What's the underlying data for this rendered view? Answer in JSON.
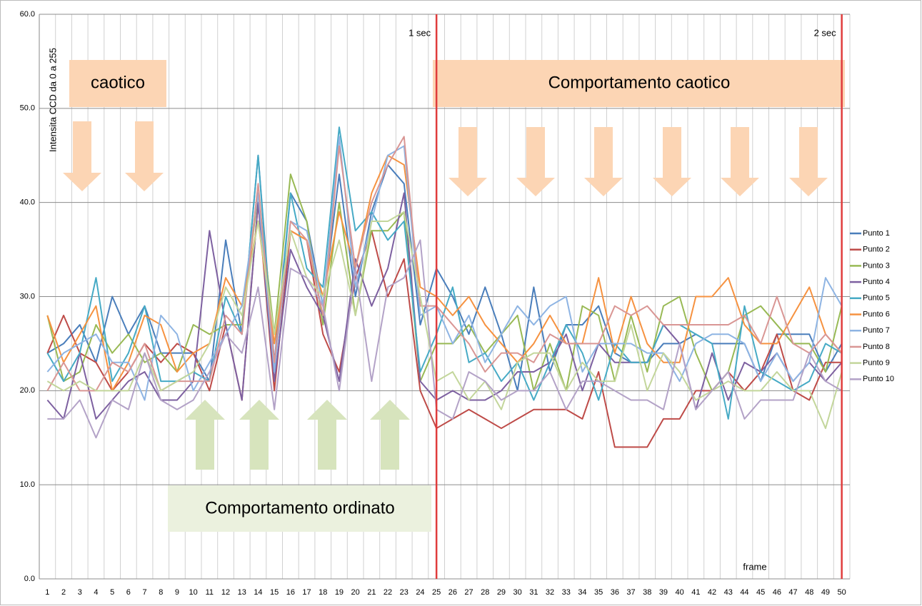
{
  "chart_data": {
    "type": "line",
    "y_label": "Intensita CCD da 0 a 255",
    "x_label": "frame",
    "annotations": [
      "caotico",
      "Comportamento caotico",
      "Comportamento ordinato"
    ],
    "markers": [
      {
        "x": 25,
        "label": "1 sec",
        "color": "#e03c3c"
      },
      {
        "x": 50,
        "label": "2 sec",
        "color": "#e03c3c"
      }
    ],
    "categories": [
      1,
      2,
      3,
      4,
      5,
      6,
      7,
      8,
      9,
      10,
      11,
      12,
      13,
      14,
      15,
      16,
      17,
      18,
      19,
      20,
      21,
      22,
      23,
      24,
      25,
      26,
      27,
      28,
      29,
      30,
      31,
      32,
      33,
      34,
      35,
      36,
      37,
      38,
      39,
      40,
      41,
      42,
      43,
      44,
      45,
      46,
      47,
      48,
      49,
      50
    ],
    "ylim": [
      0,
      60
    ],
    "yticks": [
      {
        "value": 0,
        "label": "0.0"
      },
      {
        "value": 10,
        "label": "10.0"
      },
      {
        "value": 20,
        "label": "20.0"
      },
      {
        "value": 30,
        "label": "30.0"
      },
      {
        "value": 40,
        "label": "40.0"
      },
      {
        "value": 50,
        "label": "50.0"
      },
      {
        "value": 60,
        "label": "60.0"
      }
    ],
    "grid": true,
    "legend": "right",
    "series": [
      {
        "name": "Punto 1",
        "color": "#4a7ebb",
        "values": [
          24,
          25,
          27,
          23,
          30,
          26,
          29,
          24,
          24,
          24,
          21,
          36,
          26,
          45,
          23,
          41,
          38,
          29,
          43,
          30,
          39,
          44,
          42,
          27,
          33,
          30,
          26,
          31,
          26,
          20,
          31,
          22,
          27,
          27,
          29,
          24,
          23,
          23,
          25,
          25,
          26,
          25,
          25,
          25,
          21,
          26,
          26,
          26,
          22,
          25
        ]
      },
      {
        "name": "Punto 2",
        "color": "#be4b48",
        "values": [
          24,
          28,
          24,
          23,
          20,
          22,
          25,
          23,
          25,
          24,
          20,
          27,
          19,
          40,
          20,
          37,
          36,
          26,
          22,
          32,
          37,
          30,
          34,
          20,
          16,
          17,
          18,
          17,
          16,
          17,
          18,
          18,
          18,
          17,
          22,
          14,
          14,
          14,
          17,
          17,
          20,
          20,
          22,
          20,
          22,
          26,
          20,
          19,
          23,
          23
        ]
      },
      {
        "name": "Punto 3",
        "color": "#98b954",
        "values": [
          28,
          21,
          22,
          27,
          24,
          26,
          23,
          24,
          22,
          27,
          26,
          27,
          27,
          41,
          26,
          43,
          38,
          27,
          40,
          28,
          37,
          37,
          39,
          21,
          25,
          25,
          27,
          24,
          26,
          28,
          20,
          25,
          20,
          29,
          28,
          21,
          28,
          22,
          29,
          30,
          24,
          20,
          22,
          28,
          29,
          27,
          25,
          25,
          22,
          29
        ]
      },
      {
        "name": "Punto 4",
        "color": "#7d60a0",
        "values": [
          19,
          17,
          24,
          17,
          19,
          21,
          22,
          19,
          19,
          21,
          37,
          27,
          19,
          40,
          21,
          35,
          31,
          28,
          21,
          34,
          29,
          33,
          41,
          21,
          19,
          20,
          19,
          19,
          20,
          22,
          22,
          23,
          26,
          20,
          25,
          23,
          23,
          23,
          27,
          25,
          18,
          24,
          19,
          23,
          22,
          24,
          21,
          23,
          21,
          23
        ]
      },
      {
        "name": "Punto 5",
        "color": "#46aac5",
        "values": [
          24,
          21,
          24,
          32,
          21,
          24,
          29,
          21,
          21,
          22,
          21,
          30,
          26,
          45,
          22,
          41,
          33,
          31,
          48,
          37,
          39,
          36,
          38,
          22,
          26,
          31,
          23,
          24,
          21,
          23,
          19,
          23,
          27,
          24,
          19,
          25,
          23,
          23,
          27,
          27,
          26,
          25,
          17,
          29,
          22,
          21,
          20,
          21,
          25,
          24
        ]
      },
      {
        "name": "Punto 6",
        "color": "#f69240",
        "values": [
          28,
          23,
          26,
          29,
          20,
          23,
          28,
          27,
          22,
          24,
          25,
          32,
          29,
          38,
          25,
          37,
          36,
          30,
          39,
          33,
          41,
          45,
          44,
          31,
          30,
          28,
          30,
          27,
          25,
          23,
          25,
          28,
          25,
          25,
          32,
          24,
          30,
          25,
          23,
          23,
          30,
          30,
          32,
          27,
          25,
          25,
          28,
          31,
          26,
          24
        ]
      },
      {
        "name": "Punto 7",
        "color": "#8eb4e3",
        "values": [
          22,
          24,
          25,
          26,
          23,
          23,
          19,
          28,
          26,
          20,
          23,
          26,
          29,
          41,
          22,
          38,
          37,
          29,
          47,
          31,
          38,
          45,
          46,
          28,
          29,
          25,
          28,
          23,
          26,
          29,
          27,
          29,
          30,
          22,
          25,
          25,
          25,
          24,
          24,
          21,
          25,
          26,
          26,
          25,
          21,
          24,
          21,
          23,
          32,
          29
        ]
      },
      {
        "name": "Punto 8",
        "color": "#d99694",
        "values": [
          20,
          23,
          20,
          20,
          23,
          22,
          25,
          20,
          21,
          21,
          21,
          28,
          26,
          42,
          23,
          38,
          36,
          28,
          46,
          33,
          40,
          44,
          47,
          29,
          29,
          27,
          25,
          22,
          24,
          24,
          23,
          26,
          25,
          25,
          25,
          29,
          28,
          29,
          27,
          27,
          27,
          27,
          27,
          28,
          25,
          30,
          25,
          24,
          26,
          24
        ]
      },
      {
        "name": "Punto 9",
        "color": "#c3d69b",
        "values": [
          21,
          20,
          21,
          20,
          20,
          20,
          24,
          20,
          21,
          22,
          25,
          31,
          28,
          38,
          26,
          37,
          32,
          30,
          36,
          28,
          38,
          38,
          39,
          30,
          21,
          22,
          19,
          21,
          18,
          23,
          24,
          24,
          20,
          23,
          21,
          21,
          27,
          20,
          24,
          22,
          19,
          20,
          21,
          20,
          20,
          22,
          20,
          20,
          16,
          22
        ]
      },
      {
        "name": "Punto 10",
        "color": "#b3a2c7",
        "values": [
          17,
          17,
          19,
          15,
          19,
          18,
          24,
          19,
          18,
          19,
          22,
          26,
          24,
          31,
          18,
          33,
          32,
          29,
          20,
          33,
          21,
          31,
          32,
          36,
          18,
          17,
          22,
          21,
          19,
          20,
          20,
          22,
          18,
          21,
          21,
          20,
          19,
          19,
          18,
          25,
          18,
          20,
          22,
          17,
          19,
          19,
          19,
          24,
          21,
          20
        ]
      }
    ]
  }
}
